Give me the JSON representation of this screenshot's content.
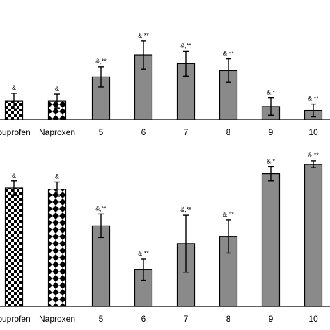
{
  "chart_data": [
    {
      "type": "bar",
      "categories": [
        "Ibuprofen",
        "Naproxen",
        "5",
        "6",
        "7",
        "8",
        "9",
        "10"
      ],
      "tick_labels": [
        "buprofen",
        "Naproxen",
        "5",
        "6",
        "7",
        "8",
        "9",
        "10"
      ],
      "values": [
        24,
        24,
        55,
        83,
        72,
        63,
        17,
        12
      ],
      "errors": [
        10,
        9,
        13,
        18,
        16,
        15,
        11,
        8
      ],
      "annotations": [
        "&",
        "&",
        "&,**",
        "&,**",
        "&,**",
        "&,**",
        "&,*",
        "&,**"
      ],
      "bar_styles": [
        "checker",
        "diamond",
        "solid",
        "solid",
        "solid",
        "solid",
        "solid",
        "solid"
      ],
      "ylim": [
        0,
        100
      ],
      "xlabel": "",
      "ylabel": ""
    },
    {
      "type": "bar",
      "categories": [
        "Ibuprofen",
        "Naproxen",
        "5",
        "6",
        "7",
        "8",
        "9",
        "10"
      ],
      "tick_labels": [
        "buprofen",
        "Naproxen",
        "5",
        "6",
        "7",
        "8",
        "9",
        "10"
      ],
      "values": [
        100,
        99,
        68,
        31,
        53,
        59,
        112,
        120
      ],
      "errors": [
        6,
        6,
        10,
        9,
        24,
        14,
        6,
        3
      ],
      "annotations": [
        "&",
        "&",
        "&,**",
        "&,**",
        "&,**",
        "&,**",
        "&,*",
        "&,**"
      ],
      "bar_styles": [
        "checker",
        "diamond",
        "solid",
        "solid",
        "solid",
        "solid",
        "solid",
        "solid"
      ],
      "ylim": [
        0,
        120
      ],
      "xlabel": "",
      "ylabel": ""
    }
  ],
  "colors": {
    "solid_bar": "#8a8a8a",
    "pattern_dark": "#000000",
    "pattern_light": "#ffffff",
    "axis": "#000000"
  }
}
